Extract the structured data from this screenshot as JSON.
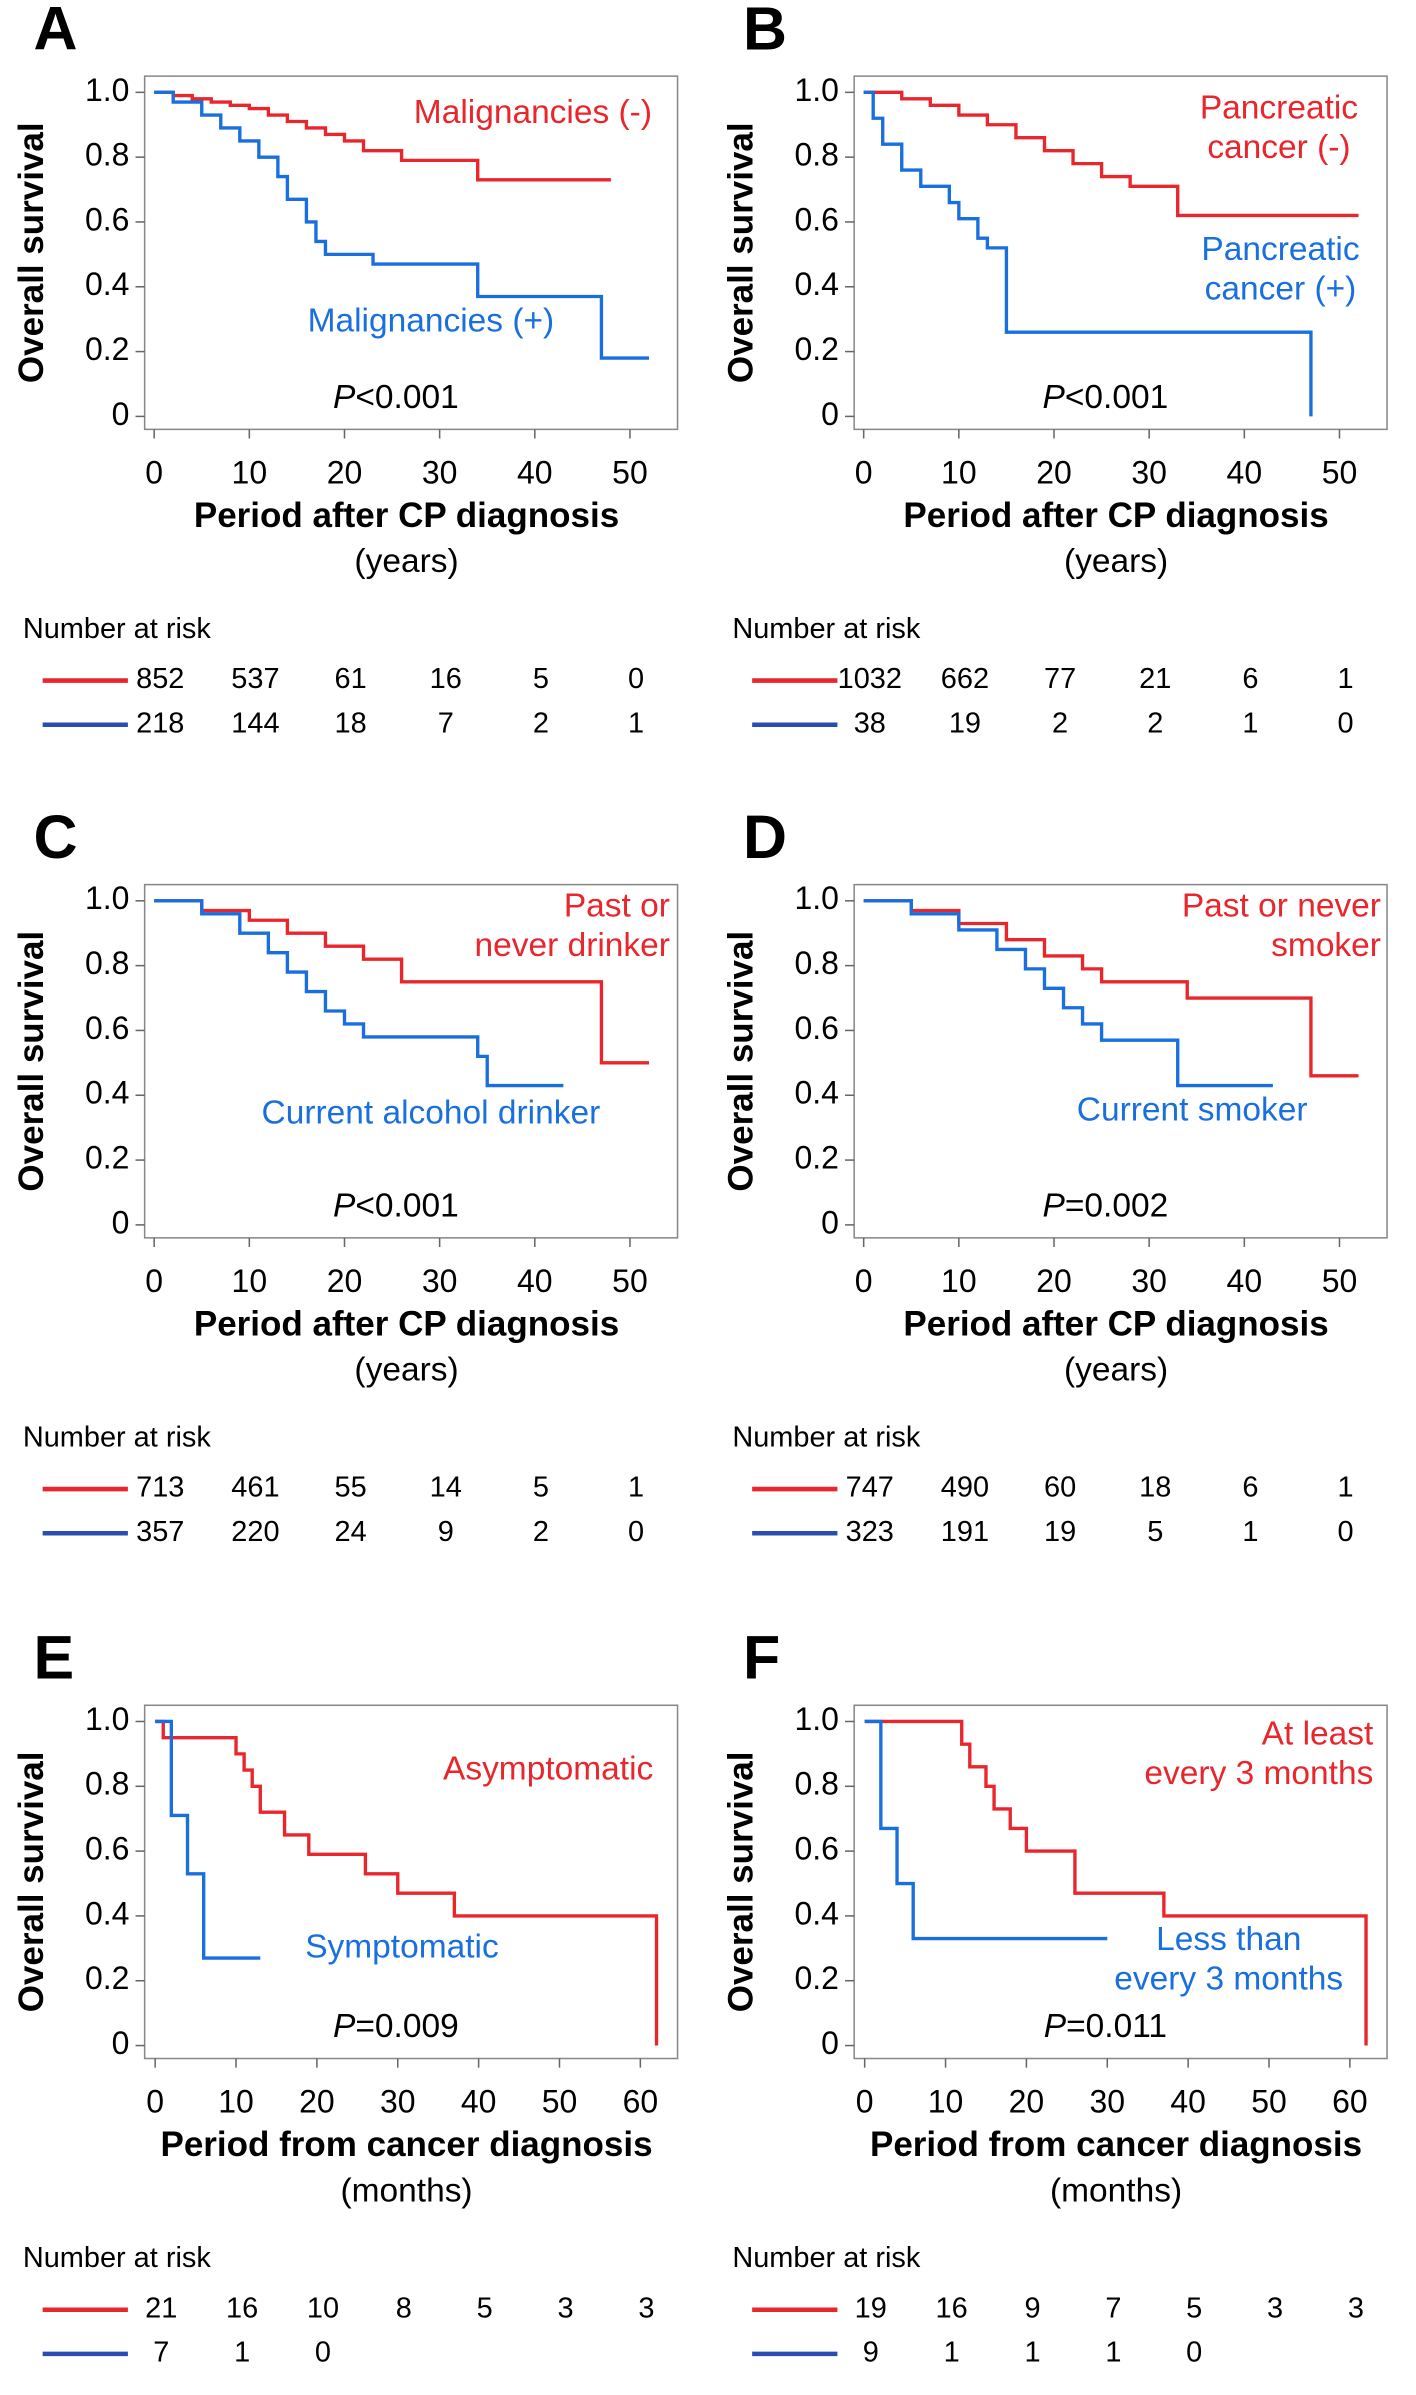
{
  "chart_data": [
    {
      "type": "line",
      "panel_label": "A",
      "ylabel": "Overall survival",
      "xlabel": "Period after CP diagnosis",
      "xlabel_unit": "(years)",
      "p_value": "P<0.001",
      "xlim": [
        -1,
        55
      ],
      "xticks": [
        0,
        10,
        20,
        30,
        40,
        50
      ],
      "ylim": [
        -0.04,
        1.05
      ],
      "yticks": [
        0,
        0.2,
        0.4,
        0.6,
        0.8,
        {
          "value": 1,
          "label": "1.0"
        }
      ],
      "series": [
        {
          "name": [
            "Malignancies (-)"
          ],
          "color": "#e8262c",
          "x": [
            0,
            2,
            4,
            6,
            8,
            10,
            12,
            14,
            16,
            18,
            20,
            22,
            26,
            34,
            48
          ],
          "values": [
            1,
            0.99,
            0.98,
            0.97,
            0.96,
            0.95,
            0.93,
            0.91,
            0.89,
            0.87,
            0.85,
            0.82,
            0.79,
            0.73,
            0.73
          ]
        },
        {
          "name": [
            "Malignancies (+)"
          ],
          "color": "#1a6fdf",
          "x": [
            0,
            2,
            5,
            7,
            9,
            11,
            13,
            14,
            16,
            17,
            18,
            23,
            34,
            47,
            52
          ],
          "values": [
            1,
            0.97,
            0.93,
            0.89,
            0.85,
            0.8,
            0.74,
            0.67,
            0.6,
            0.54,
            0.5,
            0.47,
            0.37,
            0.18,
            0.18
          ]
        }
      ],
      "risk_table": {
        "title": "Number at risk",
        "rows": [
          {
            "color": "#e8262c",
            "values": [
              852,
              537,
              61,
              16,
              5,
              0
            ]
          },
          {
            "color": "#2b4db0",
            "values": [
              218,
              144,
              18,
              7,
              2,
              1
            ]
          }
        ]
      }
    },
    {
      "type": "line",
      "panel_label": "B",
      "ylabel": "Overall survival",
      "xlabel": "Period after CP diagnosis",
      "xlabel_unit": "(years)",
      "p_value": "P<0.001",
      "xlim": [
        -1,
        55
      ],
      "xticks": [
        0,
        10,
        20,
        30,
        40,
        50
      ],
      "ylim": [
        -0.04,
        1.05
      ],
      "yticks": [
        0,
        0.2,
        0.4,
        0.6,
        0.8,
        {
          "value": 1,
          "label": "1.0"
        }
      ],
      "series": [
        {
          "name": [
            "Pancreatic",
            "cancer (-)"
          ],
          "color": "#e8262c",
          "x": [
            0,
            4,
            7,
            10,
            13,
            16,
            19,
            22,
            25,
            28,
            33,
            52
          ],
          "values": [
            1,
            0.98,
            0.96,
            0.93,
            0.9,
            0.86,
            0.82,
            0.78,
            0.74,
            0.71,
            0.62,
            0.62
          ]
        },
        {
          "name": [
            "Pancreatic",
            "cancer (+)"
          ],
          "color": "#1a6fdf",
          "x": [
            0,
            1,
            2,
            4,
            6,
            9,
            10,
            12,
            13,
            15,
            47
          ],
          "values": [
            1,
            0.92,
            0.84,
            0.76,
            0.71,
            0.66,
            0.61,
            0.55,
            0.52,
            0.26,
            0
          ]
        }
      ],
      "risk_table": {
        "title": "Number at risk",
        "rows": [
          {
            "color": "#e8262c",
            "values": [
              1032,
              662,
              77,
              21,
              6,
              1
            ]
          },
          {
            "color": "#2b4db0",
            "values": [
              38,
              19,
              2,
              2,
              1,
              0
            ]
          }
        ]
      }
    },
    {
      "type": "line",
      "panel_label": "C",
      "ylabel": "Overall survival",
      "xlabel": "Period after CP diagnosis",
      "xlabel_unit": "(years)",
      "p_value": "P<0.001",
      "xlim": [
        -1,
        55
      ],
      "xticks": [
        0,
        10,
        20,
        30,
        40,
        50
      ],
      "ylim": [
        -0.04,
        1.05
      ],
      "yticks": [
        0,
        0.2,
        0.4,
        0.6,
        0.8,
        {
          "value": 1,
          "label": "1.0"
        }
      ],
      "series": [
        {
          "name": [
            "Past or",
            "never drinker"
          ],
          "color": "#e8262c",
          "x": [
            0,
            5,
            10,
            14,
            18,
            22,
            26,
            47,
            52
          ],
          "values": [
            1,
            0.97,
            0.94,
            0.9,
            0.86,
            0.82,
            0.75,
            0.5,
            0.5
          ]
        },
        {
          "name": [
            "Current alcohol drinker"
          ],
          "color": "#1a6fdf",
          "x": [
            0,
            5,
            9,
            12,
            14,
            16,
            18,
            20,
            22,
            34,
            35,
            43
          ],
          "values": [
            1,
            0.96,
            0.9,
            0.84,
            0.78,
            0.72,
            0.66,
            0.62,
            0.58,
            0.52,
            0.43,
            0.43
          ]
        }
      ],
      "risk_table": {
        "title": "Number at risk",
        "rows": [
          {
            "color": "#e8262c",
            "values": [
              713,
              461,
              55,
              14,
              5,
              1
            ]
          },
          {
            "color": "#2b4db0",
            "values": [
              357,
              220,
              24,
              9,
              2,
              0
            ]
          }
        ]
      }
    },
    {
      "type": "line",
      "panel_label": "D",
      "ylabel": "Overall survival",
      "xlabel": "Period after CP diagnosis",
      "xlabel_unit": "(years)",
      "p_value": "P=0.002",
      "xlim": [
        -1,
        55
      ],
      "xticks": [
        0,
        10,
        20,
        30,
        40,
        50
      ],
      "ylim": [
        -0.04,
        1.05
      ],
      "yticks": [
        0,
        0.2,
        0.4,
        0.6,
        0.8,
        {
          "value": 1,
          "label": "1.0"
        }
      ],
      "series": [
        {
          "name": [
            "Past or never",
            "smoker"
          ],
          "color": "#e8262c",
          "x": [
            0,
            5,
            10,
            15,
            19,
            23,
            25,
            34,
            47,
            52
          ],
          "values": [
            1,
            0.97,
            0.93,
            0.88,
            0.83,
            0.79,
            0.75,
            0.7,
            0.46,
            0.46
          ]
        },
        {
          "name": [
            "Current smoker"
          ],
          "color": "#1a6fdf",
          "x": [
            0,
            5,
            10,
            14,
            17,
            19,
            21,
            23,
            25,
            33,
            43
          ],
          "values": [
            1,
            0.96,
            0.91,
            0.85,
            0.79,
            0.73,
            0.67,
            0.62,
            0.57,
            0.43,
            0.43
          ]
        }
      ],
      "risk_table": {
        "title": "Number at risk",
        "rows": [
          {
            "color": "#e8262c",
            "values": [
              747,
              490,
              60,
              18,
              6,
              1
            ]
          },
          {
            "color": "#2b4db0",
            "values": [
              323,
              191,
              19,
              5,
              1,
              0
            ]
          }
        ]
      }
    },
    {
      "type": "line",
      "panel_label": "E",
      "ylabel": "Overall survival",
      "xlabel": "Period from cancer diagnosis",
      "xlabel_unit": "(months)",
      "p_value": "P=0.009",
      "xlim": [
        -1.3,
        64.6
      ],
      "xticks": [
        0,
        10,
        20,
        30,
        40,
        50,
        60
      ],
      "ylim": [
        -0.04,
        1.05
      ],
      "yticks": [
        0,
        0.2,
        0.4,
        0.6,
        0.8,
        {
          "value": 1,
          "label": "1.0"
        }
      ],
      "series": [
        {
          "name": [
            "Asymptomatic"
          ],
          "color": "#e8262c",
          "x": [
            0,
            1,
            10,
            11,
            12,
            13,
            16,
            19,
            26,
            30,
            37,
            62
          ],
          "values": [
            1,
            0.95,
            0.9,
            0.85,
            0.8,
            0.72,
            0.65,
            0.59,
            0.53,
            0.47,
            0.4,
            0
          ]
        },
        {
          "name": [
            "Symptomatic"
          ],
          "color": "#1a6fdf",
          "x": [
            0,
            2,
            4,
            6,
            13
          ],
          "values": [
            1,
            0.71,
            0.53,
            0.27,
            0.27
          ]
        }
      ],
      "risk_table": {
        "title": "Number at risk",
        "rows": [
          {
            "color": "#e8262c",
            "values": [
              21,
              16,
              10,
              8,
              5,
              3,
              3
            ]
          },
          {
            "color": "#2b4db0",
            "values": [
              7,
              1,
              0
            ]
          }
        ]
      }
    },
    {
      "type": "line",
      "panel_label": "F",
      "ylabel": "Overall survival",
      "xlabel": "Period from cancer diagnosis",
      "xlabel_unit": "(months)",
      "p_value": "P=0.011",
      "xlim": [
        -1.3,
        64.6
      ],
      "xticks": [
        0,
        10,
        20,
        30,
        40,
        50,
        60
      ],
      "ylim": [
        -0.04,
        1.05
      ],
      "yticks": [
        0,
        0.2,
        0.4,
        0.6,
        0.8,
        {
          "value": 1,
          "label": "1.0"
        }
      ],
      "series": [
        {
          "name": [
            "At least",
            "every 3 months"
          ],
          "color": "#e8262c",
          "x": [
            0,
            12,
            13,
            15,
            16,
            18,
            20,
            26,
            37,
            62
          ],
          "values": [
            1,
            0.93,
            0.86,
            0.8,
            0.73,
            0.67,
            0.6,
            0.47,
            0.4,
            0
          ]
        },
        {
          "name": [
            "Less than",
            "every 3 months"
          ],
          "color": "#1a6fdf",
          "x": [
            0,
            2,
            4,
            6,
            30
          ],
          "values": [
            1,
            0.67,
            0.5,
            0.33,
            0.33
          ]
        }
      ],
      "risk_table": {
        "title": "Number at risk",
        "rows": [
          {
            "color": "#e8262c",
            "values": [
              19,
              16,
              9,
              7,
              5,
              3,
              3
            ]
          },
          {
            "color": "#2b4db0",
            "values": [
              9,
              1,
              1,
              1,
              0
            ]
          }
        ]
      }
    }
  ]
}
